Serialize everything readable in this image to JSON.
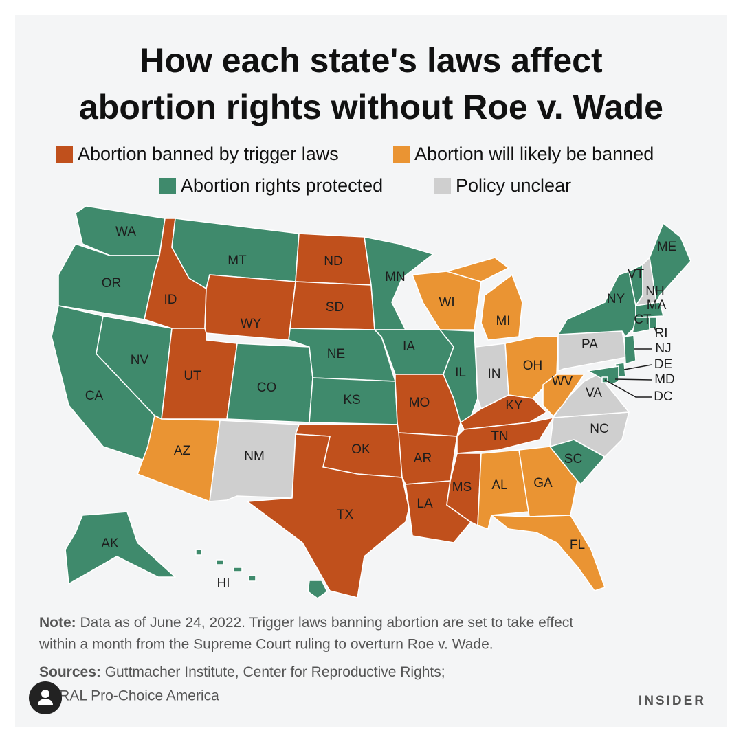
{
  "header": {
    "title_lines": [
      "How each state's laws affect",
      "abortion rights without Roe v. Wade"
    ]
  },
  "legend": [
    {
      "label": "Abortion banned by trigger laws",
      "color": "#c0501c"
    },
    {
      "label": "Abortion will likely be banned",
      "color": "#ea9433"
    },
    {
      "label": "Abortion rights protected",
      "color": "#3f8a6c"
    },
    {
      "label": "Policy unclear",
      "color": "#cfcfcf"
    }
  ],
  "states": [
    {
      "label": "WA",
      "status": 2
    },
    {
      "label": "OR",
      "status": 2
    },
    {
      "label": "CA",
      "status": 2
    },
    {
      "label": "NV",
      "status": 2
    },
    {
      "label": "ID",
      "status": 0
    },
    {
      "label": "MT",
      "status": 2
    },
    {
      "label": "WY",
      "status": 0
    },
    {
      "label": "UT",
      "status": 0
    },
    {
      "label": "CO",
      "status": 2
    },
    {
      "label": "AZ",
      "status": 1
    },
    {
      "label": "NM",
      "status": 3
    },
    {
      "label": "ND",
      "status": 0
    },
    {
      "label": "SD",
      "status": 0
    },
    {
      "label": "NE",
      "status": 2
    },
    {
      "label": "KS",
      "status": 2
    },
    {
      "label": "OK",
      "status": 0
    },
    {
      "label": "TX",
      "status": 0
    },
    {
      "label": "MN",
      "status": 2
    },
    {
      "label": "IA",
      "status": 2
    },
    {
      "label": "MO",
      "status": 0
    },
    {
      "label": "AR",
      "status": 0
    },
    {
      "label": "LA",
      "status": 0
    },
    {
      "label": "MS",
      "status": 0
    },
    {
      "label": "WI",
      "status": 1
    },
    {
      "label": "MI",
      "status": 1
    },
    {
      "label": "IL",
      "status": 2
    },
    {
      "label": "IN",
      "status": 3
    },
    {
      "label": "OH",
      "status": 1
    },
    {
      "label": "KY",
      "status": 0
    },
    {
      "label": "TN",
      "status": 0
    },
    {
      "label": "AL",
      "status": 1
    },
    {
      "label": "GA",
      "status": 1
    },
    {
      "label": "FL",
      "status": 1
    },
    {
      "label": "SC",
      "status": 2
    },
    {
      "label": "NC",
      "status": 3
    },
    {
      "label": "VA",
      "status": 3
    },
    {
      "label": "WV",
      "status": 1
    },
    {
      "label": "PA",
      "status": 3
    },
    {
      "label": "NY",
      "status": 2
    },
    {
      "label": "VT",
      "status": 2
    },
    {
      "label": "NH",
      "status": 3
    },
    {
      "label": "ME",
      "status": 2
    },
    {
      "label": "MA",
      "status": 2
    },
    {
      "label": "CT",
      "status": 2
    },
    {
      "label": "RI",
      "status": 2
    },
    {
      "label": "NJ",
      "status": 2
    },
    {
      "label": "DE",
      "status": 2
    },
    {
      "label": "MD",
      "status": 2
    },
    {
      "label": "DC",
      "status": 2
    },
    {
      "label": "AK",
      "status": 2
    },
    {
      "label": "HI",
      "status": 2
    }
  ],
  "note": {
    "label": "Note:",
    "text_lines": [
      "Data as of June 24, 2022. Trigger laws banning abortion are set to take effect",
      "within a month from the Supreme Court ruling to overturn Roe v. Wade."
    ]
  },
  "sources": {
    "label": "Sources:",
    "text_lines": [
      "Guttmacher Institute, Center for Reproductive Rights;",
      "NARAL Pro-Choice America"
    ]
  },
  "brand": "INSIDER"
}
